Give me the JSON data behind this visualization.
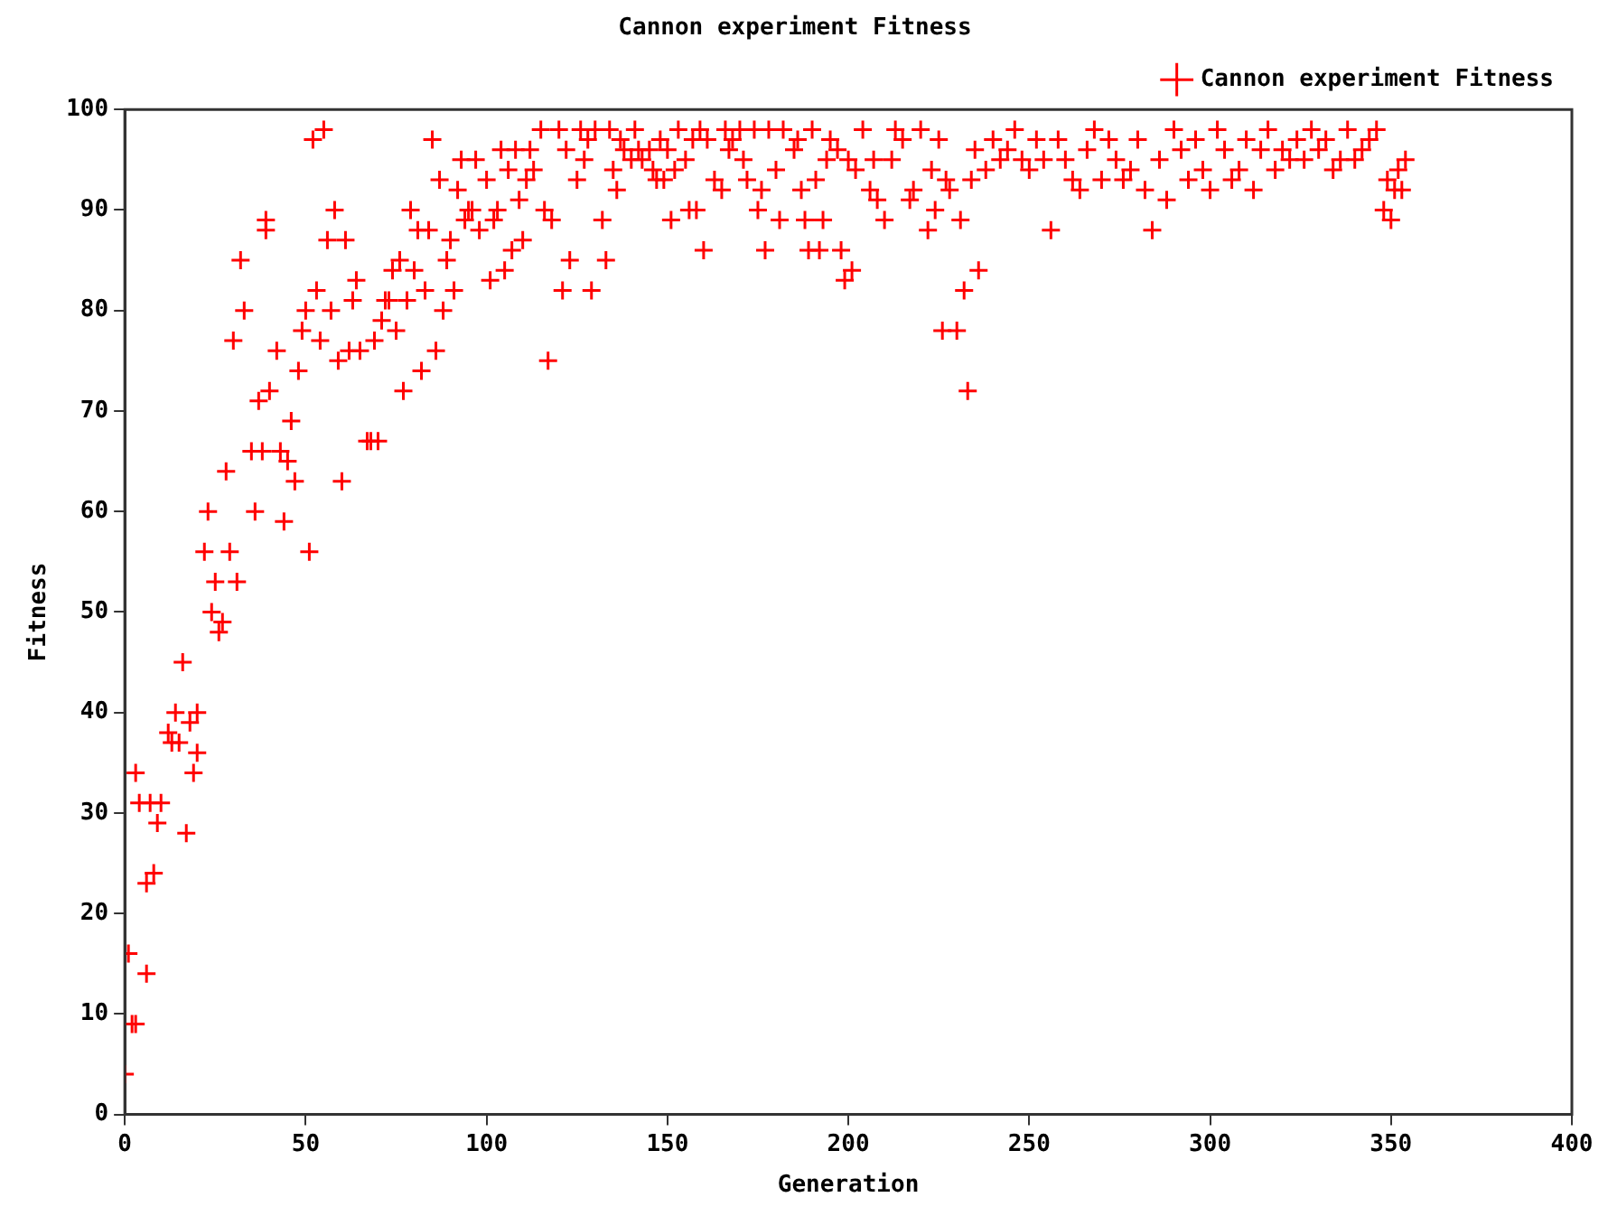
{
  "chart_data": {
    "type": "scatter",
    "title": "Cannon experiment Fitness",
    "xlabel": "Generation",
    "ylabel": "Fitness",
    "x": [
      0,
      1,
      2,
      3,
      3,
      4,
      6,
      6,
      7,
      8,
      9,
      10,
      12,
      13,
      14,
      15,
      16,
      17,
      18,
      19,
      20,
      20,
      22,
      23,
      24,
      25,
      26,
      27,
      28,
      29,
      30,
      31,
      32,
      33,
      35,
      36,
      37,
      38,
      39,
      39,
      40,
      42,
      43,
      44,
      45,
      46,
      47,
      48,
      49,
      50,
      51,
      52,
      53,
      54,
      55,
      56,
      57,
      58,
      59,
      60,
      61,
      62,
      63,
      64,
      65,
      67,
      68,
      69,
      70,
      71,
      72,
      73,
      74,
      75,
      76,
      77,
      78,
      79,
      80,
      81,
      82,
      83,
      84,
      85,
      86,
      87,
      88,
      89,
      90,
      91,
      92,
      93,
      94,
      95,
      96,
      97,
      98,
      100,
      101,
      102,
      103,
      104,
      105,
      106,
      107,
      108,
      109,
      110,
      111,
      112,
      113,
      115,
      116,
      117,
      118,
      120,
      121,
      122,
      123,
      125,
      126,
      127,
      128,
      129,
      130,
      132,
      133,
      134,
      135,
      136,
      137,
      138,
      140,
      141,
      142,
      143,
      145,
      146,
      147,
      148,
      149,
      150,
      151,
      152,
      153,
      155,
      156,
      157,
      158,
      159,
      160,
      161,
      163,
      165,
      166,
      167,
      168,
      170,
      171,
      172,
      174,
      175,
      176,
      177,
      178,
      180,
      181,
      182,
      185,
      186,
      187,
      188,
      189,
      190,
      191,
      192,
      193,
      194,
      195,
      197,
      198,
      199,
      200,
      201,
      202,
      204,
      206,
      207,
      208,
      210,
      212,
      213,
      215,
      217,
      218,
      220,
      222,
      223,
      224,
      225,
      226,
      227,
      228,
      230,
      231,
      232,
      233,
      234,
      235,
      236,
      238,
      240,
      242,
      244,
      246,
      248,
      250,
      252,
      254,
      256,
      258,
      260,
      262,
      264,
      266,
      268,
      270,
      272,
      274,
      276,
      278,
      280,
      282,
      284,
      286,
      288,
      290,
      292,
      294,
      296,
      298,
      300,
      302,
      304,
      306,
      308,
      310,
      312,
      314,
      316,
      318,
      320,
      322,
      324,
      326,
      328,
      330,
      332,
      334,
      336,
      338,
      340,
      342,
      344,
      346,
      348,
      349,
      350,
      351,
      352,
      353,
      354
    ],
    "series": [
      {
        "name": "Cannon experiment Fitness",
        "color": "#ff0000",
        "values": [
          4,
          16,
          9,
          9,
          34,
          31,
          14,
          23,
          31,
          24,
          29,
          31,
          38,
          37,
          40,
          37,
          45,
          28,
          39,
          34,
          36,
          40,
          56,
          60,
          50,
          53,
          48,
          49,
          64,
          56,
          77,
          53,
          85,
          80,
          66,
          60,
          71,
          66,
          88,
          89,
          72,
          76,
          66,
          59,
          65,
          69,
          63,
          74,
          78,
          80,
          56,
          97,
          82,
          77,
          98,
          87,
          80,
          90,
          75,
          63,
          87,
          76,
          81,
          83,
          76,
          67,
          67,
          77,
          67,
          79,
          81,
          81,
          84,
          78,
          85,
          72,
          81,
          90,
          84,
          88,
          74,
          82,
          88,
          97,
          76,
          93,
          80,
          85,
          87,
          82,
          92,
          95,
          89,
          90,
          90,
          95,
          88,
          93,
          83,
          89,
          90,
          96,
          84,
          94,
          86,
          96,
          91,
          87,
          93,
          96,
          94,
          98,
          90,
          75,
          89,
          98,
          82,
          96,
          85,
          93,
          98,
          95,
          97,
          82,
          98,
          89,
          85,
          98,
          94,
          92,
          97,
          96,
          95,
          98,
          96,
          95,
          96,
          94,
          93,
          97,
          93,
          96,
          89,
          94,
          98,
          95,
          90,
          97,
          90,
          98,
          86,
          97,
          93,
          92,
          98,
          96,
          97,
          98,
          95,
          93,
          98,
          90,
          92,
          86,
          98,
          94,
          89,
          98,
          96,
          97,
          92,
          89,
          86,
          98,
          93,
          86,
          89,
          95,
          97,
          96,
          86,
          83,
          95,
          84,
          94,
          98,
          92,
          95,
          91,
          89,
          95,
          98,
          97,
          91,
          92,
          98,
          88,
          94,
          90,
          97,
          78,
          93,
          92,
          78,
          89,
          82,
          72,
          93,
          96,
          84,
          94,
          97,
          95,
          96,
          98,
          95,
          94,
          97,
          95,
          88,
          97,
          95,
          93,
          92,
          96,
          98,
          93,
          97,
          95,
          93,
          94,
          97,
          92,
          88,
          95,
          91,
          98,
          96,
          93,
          97,
          94,
          92,
          98,
          96,
          93,
          94,
          97,
          92,
          96,
          98,
          94,
          96,
          95,
          97,
          95,
          98,
          96,
          97,
          94,
          95,
          98,
          95,
          96,
          97,
          98,
          90,
          93,
          89,
          92,
          94,
          92,
          95
        ]
      }
    ],
    "marker": "cross",
    "legend": "top right",
    "xlim": [
      0,
      400
    ],
    "xticks": [
      0,
      50,
      100,
      150,
      200,
      250,
      300,
      350,
      400
    ],
    "ylim": [
      0,
      100
    ],
    "yticks": [
      0,
      10,
      20,
      30,
      40,
      50,
      60,
      70,
      80,
      90,
      100
    ],
    "grid": false
  }
}
